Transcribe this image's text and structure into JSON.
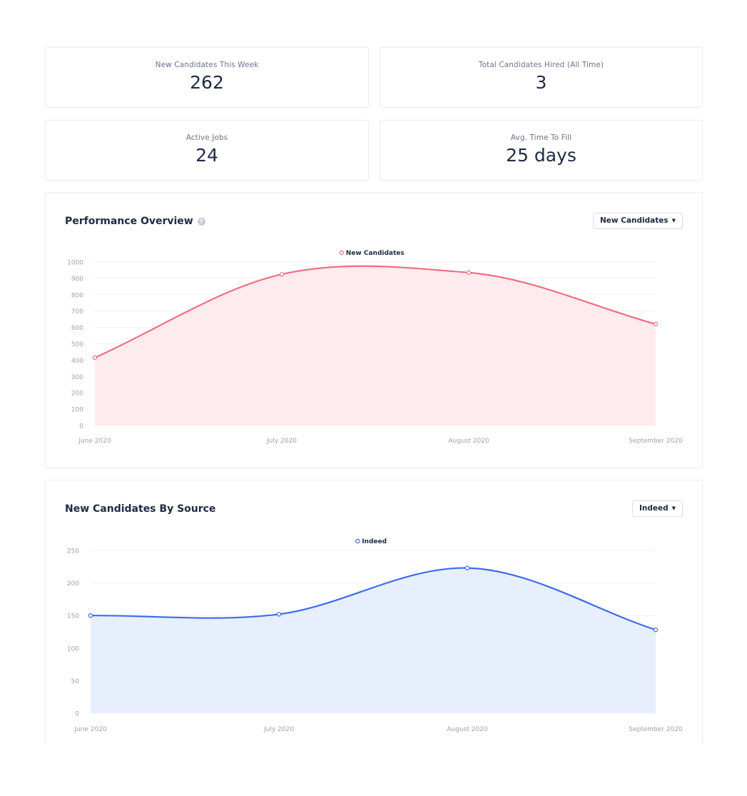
{
  "stats": [
    {
      "label": "New Candidates This Week",
      "value": "262"
    },
    {
      "label": "Total Candidates Hired (All Time)",
      "value": "3"
    },
    {
      "label": "Active Jobs",
      "value": "24"
    },
    {
      "label": "Avg. Time To Fill",
      "value": "25 days"
    }
  ],
  "performance": {
    "title": "Performance Overview",
    "help_icon": "?",
    "dropdown_label": "New Candidates",
    "color": "#f06e82",
    "fill": "#fdebee"
  },
  "by_source": {
    "title": "New Candidates By Source",
    "dropdown_label": "Indeed",
    "color": "#3d6bef",
    "fill": "#e7effc"
  },
  "chart_data": [
    {
      "type": "area",
      "x": [
        "June 2020",
        "July 2020",
        "August 2020",
        "September 2020"
      ],
      "series": [
        {
          "name": "New Candidates",
          "values": [
            415,
            925,
            935,
            620
          ]
        }
      ],
      "ylim": [
        0,
        1000
      ],
      "yticks": [
        0,
        100,
        200,
        300,
        400,
        500,
        600,
        700,
        800,
        900,
        1000
      ],
      "grid": true,
      "legend": "top-center"
    },
    {
      "type": "area",
      "x": [
        "June 2020",
        "July 2020",
        "August 2020",
        "September 2020"
      ],
      "series": [
        {
          "name": "Indeed",
          "values": [
            150,
            152,
            223,
            128
          ]
        }
      ],
      "ylim": [
        0,
        250
      ],
      "yticks": [
        0,
        50,
        100,
        150,
        200,
        250
      ],
      "grid": true,
      "legend": "top-center"
    }
  ]
}
